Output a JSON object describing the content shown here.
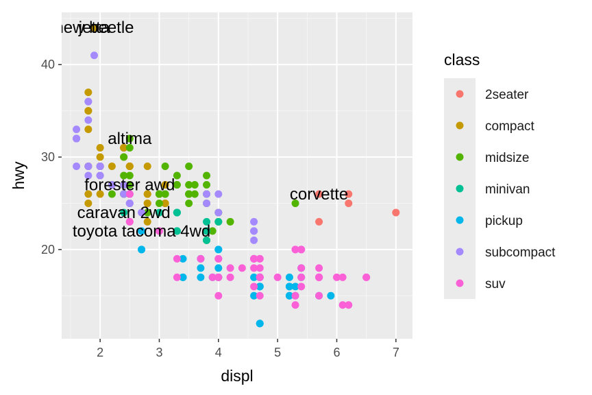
{
  "chart_data": {
    "type": "scatter",
    "xlabel": "displ",
    "ylabel": "hwy",
    "xlim": [
      1.35,
      7.28
    ],
    "ylim": [
      10.35,
      45.65
    ],
    "x_ticks": [
      2,
      3,
      4,
      5,
      6,
      7
    ],
    "y_ticks": [
      20,
      30,
      40
    ],
    "grid": true,
    "legend": {
      "title": "class",
      "position": "right"
    },
    "series": [
      {
        "name": "2seater",
        "color": "#F8766D",
        "points": [
          [
            5.7,
            26
          ],
          [
            5.7,
            23
          ],
          [
            6.2,
            26
          ],
          [
            6.2,
            25
          ],
          [
            7.0,
            24
          ]
        ]
      },
      {
        "name": "compact",
        "color": "#C49A00",
        "points": [
          [
            1.8,
            29
          ],
          [
            1.8,
            29
          ],
          [
            2.0,
            31
          ],
          [
            2.0,
            30
          ],
          [
            2.8,
            26
          ],
          [
            2.8,
            26
          ],
          [
            3.1,
            27
          ],
          [
            1.8,
            26
          ],
          [
            1.8,
            25
          ],
          [
            2.0,
            28
          ],
          [
            2.0,
            29
          ],
          [
            2.8,
            25
          ],
          [
            2.8,
            25
          ],
          [
            3.1,
            25
          ],
          [
            3.1,
            25
          ],
          [
            2.2,
            27
          ],
          [
            2.2,
            29
          ],
          [
            2.4,
            31
          ],
          [
            2.4,
            31
          ],
          [
            3.0,
            26
          ],
          [
            3.0,
            26
          ],
          [
            1.8,
            29
          ],
          [
            1.8,
            29
          ],
          [
            2.0,
            29
          ],
          [
            2.0,
            29
          ],
          [
            2.8,
            29
          ],
          [
            1.9,
            44
          ],
          [
            2.0,
            29
          ],
          [
            2.0,
            26
          ],
          [
            2.0,
            29
          ],
          [
            2.0,
            29
          ],
          [
            2.5,
            29
          ],
          [
            2.5,
            29
          ],
          [
            2.8,
            23
          ],
          [
            1.8,
            35
          ],
          [
            1.8,
            37
          ],
          [
            1.8,
            35
          ],
          [
            1.8,
            33
          ],
          [
            2.4,
            27
          ],
          [
            2.4,
            27
          ],
          [
            2.4,
            30
          ],
          [
            2.4,
            31
          ],
          [
            2.5,
            29
          ],
          [
            2.5,
            26
          ],
          [
            2.5,
            29
          ],
          [
            2.5,
            26
          ],
          [
            2.5,
            25
          ]
        ]
      },
      {
        "name": "midsize",
        "color": "#53B400",
        "points": [
          [
            2.4,
            30
          ],
          [
            3.1,
            26
          ],
          [
            3.1,
            29
          ],
          [
            2.4,
            26
          ],
          [
            2.4,
            27
          ],
          [
            2.5,
            31
          ],
          [
            2.5,
            32
          ],
          [
            3.3,
            27
          ],
          [
            3.3,
            28
          ],
          [
            3.5,
            26
          ],
          [
            3.5,
            26
          ],
          [
            3.6,
            26
          ],
          [
            3.6,
            27
          ],
          [
            3.5,
            29
          ],
          [
            3.5,
            26
          ],
          [
            3.5,
            25
          ],
          [
            2.5,
            28
          ],
          [
            2.5,
            27
          ],
          [
            3.0,
            26
          ],
          [
            3.0,
            25
          ],
          [
            3.8,
            28
          ],
          [
            3.8,
            26
          ],
          [
            3.8,
            27
          ],
          [
            3.8,
            25
          ],
          [
            3.9,
            22
          ],
          [
            4.0,
            24
          ],
          [
            3.3,
            27
          ],
          [
            4.2,
            23
          ],
          [
            5.3,
            25
          ],
          [
            4.0,
            23
          ],
          [
            2.4,
            27
          ],
          [
            2.5,
            27
          ],
          [
            2.8,
            24
          ],
          [
            3.0,
            26
          ],
          [
            3.1,
            26
          ],
          [
            3.5,
            26
          ],
          [
            3.5,
            27
          ],
          [
            3.8,
            21
          ],
          [
            2.2,
            26
          ],
          [
            2.2,
            27
          ],
          [
            2.4,
            28
          ],
          [
            2.4,
            26
          ],
          [
            3.0,
            26
          ]
        ]
      },
      {
        "name": "minivan",
        "color": "#00C094",
        "points": [
          [
            2.4,
            24
          ],
          [
            3.0,
            24
          ],
          [
            3.3,
            22
          ],
          [
            3.3,
            22
          ],
          [
            3.3,
            24
          ],
          [
            3.3,
            24
          ],
          [
            3.3,
            24
          ],
          [
            3.8,
            22
          ],
          [
            3.8,
            21
          ],
          [
            3.8,
            23
          ],
          [
            4.0,
            23
          ]
        ]
      },
      {
        "name": "pickup",
        "color": "#00B6EB",
        "points": [
          [
            2.7,
            20
          ],
          [
            2.7,
            20
          ],
          [
            2.7,
            22
          ],
          [
            3.4,
            17
          ],
          [
            3.4,
            19
          ],
          [
            4.0,
            17
          ],
          [
            4.7,
            17
          ],
          [
            4.7,
            17
          ],
          [
            4.7,
            16
          ],
          [
            4.7,
            12
          ],
          [
            5.2,
            15
          ],
          [
            5.2,
            16
          ],
          [
            5.7,
            17
          ],
          [
            5.9,
            15
          ],
          [
            4.7,
            17
          ],
          [
            4.7,
            17
          ],
          [
            4.7,
            16
          ],
          [
            4.7,
            12
          ],
          [
            5.2,
            15
          ],
          [
            5.2,
            16
          ],
          [
            3.7,
            17
          ],
          [
            3.7,
            19
          ],
          [
            3.9,
            17
          ],
          [
            4.7,
            17
          ],
          [
            4.7,
            16
          ],
          [
            5.2,
            17
          ],
          [
            5.7,
            15
          ],
          [
            4.0,
            20
          ],
          [
            4.0,
            20
          ],
          [
            4.0,
            18
          ],
          [
            4.0,
            17
          ],
          [
            4.6,
            17
          ],
          [
            5.4,
            17
          ],
          [
            3.4,
            17
          ],
          [
            3.7,
            18
          ],
          [
            4.6,
            15
          ],
          [
            4.6,
            19
          ],
          [
            5.4,
            18
          ],
          [
            5.3,
            16
          ],
          [
            5.3,
            15
          ]
        ]
      },
      {
        "name": "subcompact",
        "color": "#A58AFF",
        "points": [
          [
            3.8,
            26
          ],
          [
            3.8,
            25
          ],
          [
            4.0,
            26
          ],
          [
            4.0,
            24
          ],
          [
            4.6,
            21
          ],
          [
            4.6,
            22
          ],
          [
            4.6,
            23
          ],
          [
            4.6,
            22
          ],
          [
            5.4,
            20
          ],
          [
            1.6,
            33
          ],
          [
            1.6,
            32
          ],
          [
            1.6,
            32
          ],
          [
            1.6,
            29
          ],
          [
            1.6,
            32
          ],
          [
            1.8,
            34
          ],
          [
            1.8,
            36
          ],
          [
            1.8,
            36
          ],
          [
            2.0,
            29
          ],
          [
            2.4,
            26
          ],
          [
            2.4,
            27
          ],
          [
            2.5,
            26
          ],
          [
            2.5,
            26
          ],
          [
            2.5,
            25
          ],
          [
            2.5,
            25
          ],
          [
            2.7,
            24
          ],
          [
            1.8,
            29
          ],
          [
            1.8,
            28
          ],
          [
            2.0,
            29
          ],
          [
            2.0,
            29
          ],
          [
            2.0,
            28
          ],
          [
            2.0,
            28
          ],
          [
            2.2,
            27
          ],
          [
            1.9,
            41
          ],
          [
            2.5,
            26
          ],
          [
            2.5,
            25
          ],
          [
            2.0,
            29
          ],
          [
            1.8,
            29
          ]
        ]
      },
      {
        "name": "suv",
        "color": "#FB61D7",
        "points": [
          [
            5.3,
            20
          ],
          [
            5.3,
            15
          ],
          [
            5.3,
            20
          ],
          [
            5.7,
            17
          ],
          [
            6.0,
            17
          ],
          [
            5.7,
            17
          ],
          [
            5.7,
            17
          ],
          [
            6.2,
            14
          ],
          [
            6.5,
            17
          ],
          [
            4.0,
            19
          ],
          [
            4.0,
            17
          ],
          [
            4.7,
            19
          ],
          [
            4.7,
            19
          ],
          [
            4.7,
            17
          ],
          [
            4.7,
            17
          ],
          [
            5.7,
            15
          ],
          [
            6.1,
            17
          ],
          [
            4.7,
            15
          ],
          [
            4.7,
            18
          ],
          [
            4.7,
            17
          ],
          [
            5.7,
            17
          ],
          [
            6.1,
            14
          ],
          [
            5.4,
            17
          ],
          [
            4.6,
            19
          ],
          [
            4.6,
            19
          ],
          [
            5.4,
            18
          ],
          [
            5.4,
            20
          ],
          [
            5.4,
            16
          ],
          [
            4.2,
            18
          ],
          [
            4.0,
            19
          ],
          [
            4.0,
            17
          ],
          [
            4.0,
            15
          ],
          [
            4.6,
            18
          ],
          [
            5.0,
            17
          ],
          [
            2.5,
            23
          ],
          [
            2.5,
            23
          ],
          [
            2.5,
            26
          ],
          [
            3.3,
            19
          ],
          [
            3.3,
            17
          ],
          [
            3.7,
            19
          ],
          [
            3.9,
            17
          ],
          [
            4.2,
            17
          ],
          [
            4.4,
            18
          ],
          [
            4.6,
            19
          ],
          [
            4.6,
            16
          ],
          [
            4.7,
            17
          ],
          [
            5.3,
            14
          ],
          [
            5.4,
            20
          ],
          [
            5.7,
            18
          ],
          [
            6.5,
            17
          ],
          [
            3.0,
            22
          ],
          [
            3.0,
            22
          ]
        ]
      }
    ],
    "annotations": [
      {
        "text": "new beetle",
        "x": 1.9,
        "y": 44
      },
      {
        "text": "jetta",
        "x": 1.9,
        "y": 44
      },
      {
        "text": "altima",
        "x": 2.5,
        "y": 32
      },
      {
        "text": "forester awd",
        "x": 2.5,
        "y": 27
      },
      {
        "text": "corvette",
        "x": 5.7,
        "y": 26
      },
      {
        "text": "caravan 2wd",
        "x": 2.4,
        "y": 24
      },
      {
        "text": "toyota tacoma 4wd",
        "x": 2.7,
        "y": 22
      }
    ]
  }
}
